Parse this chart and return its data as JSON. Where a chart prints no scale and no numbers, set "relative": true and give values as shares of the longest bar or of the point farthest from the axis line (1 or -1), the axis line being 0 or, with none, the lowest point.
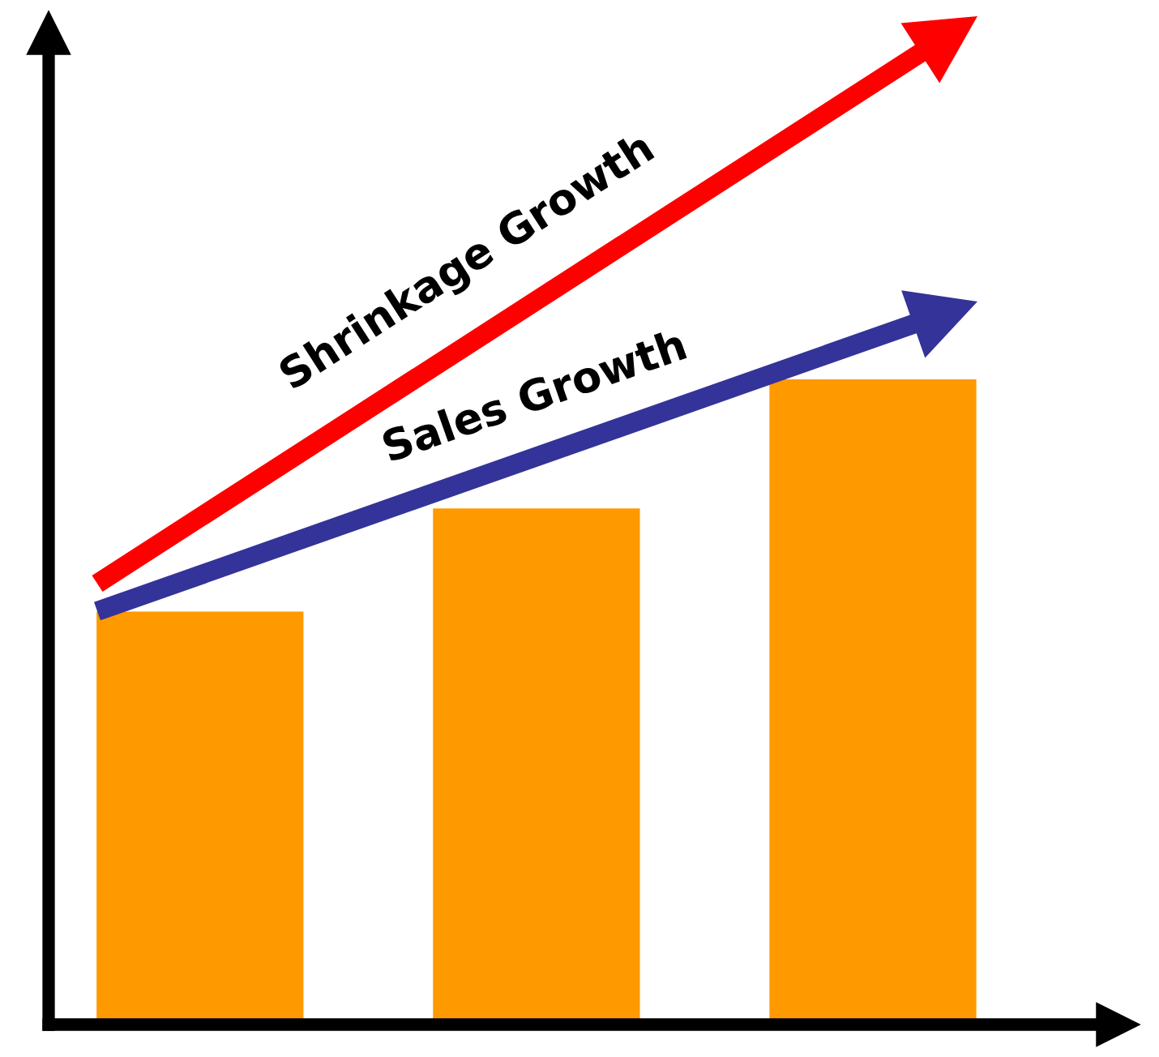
{
  "chart_data": {
    "type": "bar",
    "relative": true,
    "categories": [
      null,
      null,
      null
    ],
    "values": [
      0.64,
      0.8,
      1
    ],
    "color": "#ff9900",
    "annotations": [
      "Shrinkage Growth",
      "Sales Growth"
    ]
  }
}
